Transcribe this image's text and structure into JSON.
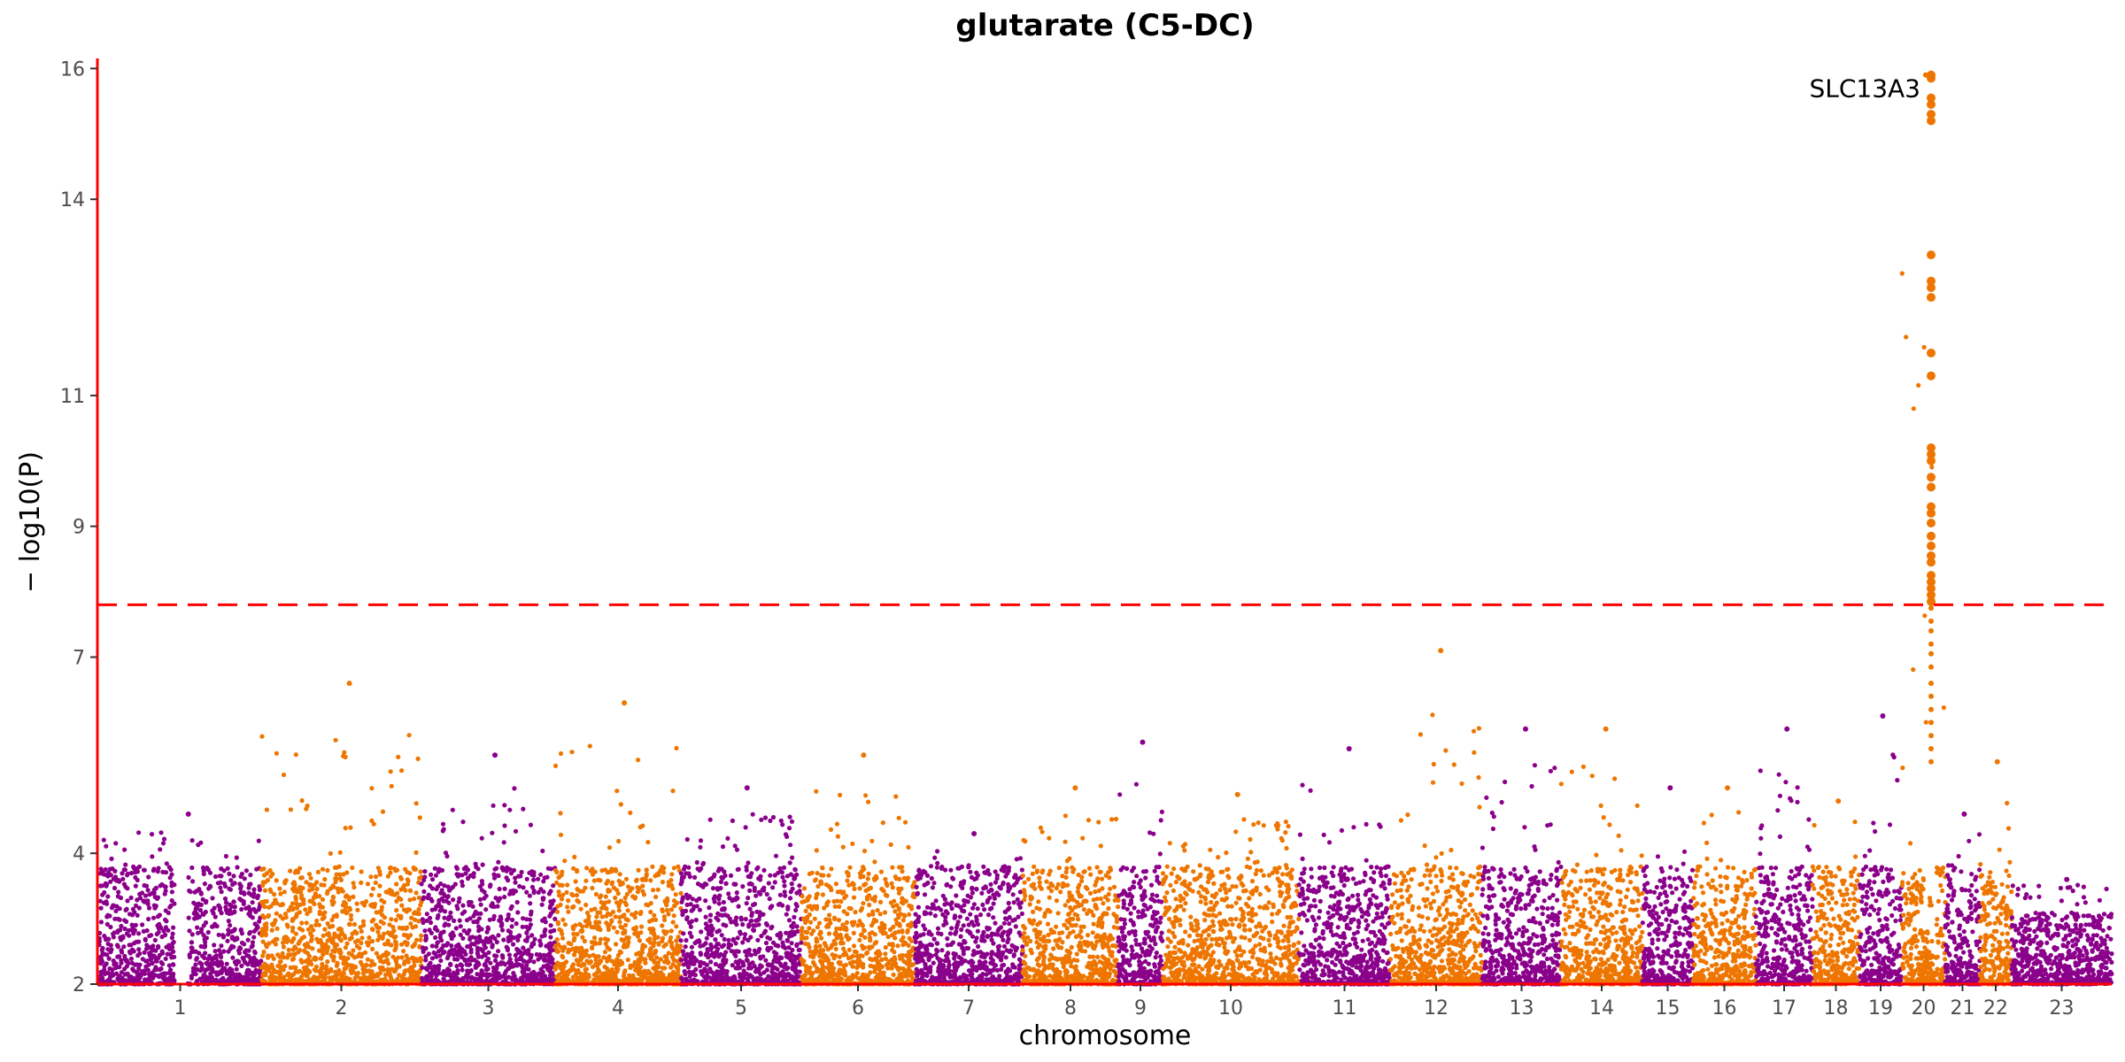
{
  "chart_data": {
    "type": "scatter",
    "title": "glutarate (C5-DC)",
    "xlabel": "chromosome",
    "ylabel": "− log10(P)",
    "ylim": [
      2,
      16.1
    ],
    "yticks": [
      2,
      4,
      7,
      9,
      11,
      14,
      16
    ],
    "threshold": 7.8,
    "colors": {
      "odd": "#8b008b",
      "even": "#ee7600",
      "threshold_line": "#ff0000",
      "axis": "#ff0000"
    },
    "chromosomes": [
      "1",
      "2",
      "3",
      "4",
      "5",
      "6",
      "7",
      "8",
      "9",
      "10",
      "11",
      "12",
      "13",
      "14",
      "15",
      "16",
      "17",
      "18",
      "19",
      "20",
      "21",
      "22",
      "23"
    ],
    "chromosome_peaks": [
      4.6,
      6.6,
      5.5,
      6.3,
      5.0,
      5.5,
      4.3,
      5.0,
      5.7,
      4.9,
      5.6,
      7.1,
      5.9,
      5.9,
      5.0,
      5.0,
      5.9,
      4.8,
      6.1,
      15.9,
      4.6,
      5.4,
      3.6
    ],
    "annotations": [
      {
        "label": "SLC13A3",
        "chromosome": "20",
        "y": 15.7
      }
    ],
    "top_hits": {
      "chromosome": "20",
      "values": [
        15.9,
        15.85,
        15.55,
        15.45,
        15.3,
        15.2,
        13.15,
        12.75,
        12.65,
        12.5,
        11.65,
        11.3,
        10.2,
        10.1,
        10.0,
        9.75,
        9.6,
        9.3,
        9.2,
        9.05,
        8.85,
        8.7,
        8.55,
        8.45,
        8.25,
        8.15,
        8.05,
        7.95,
        7.85,
        7.75,
        7.55,
        7.4,
        7.2,
        7.05,
        6.85,
        6.6,
        6.4,
        6.2,
        6.0,
        5.8,
        5.6,
        5.4
      ]
    }
  }
}
